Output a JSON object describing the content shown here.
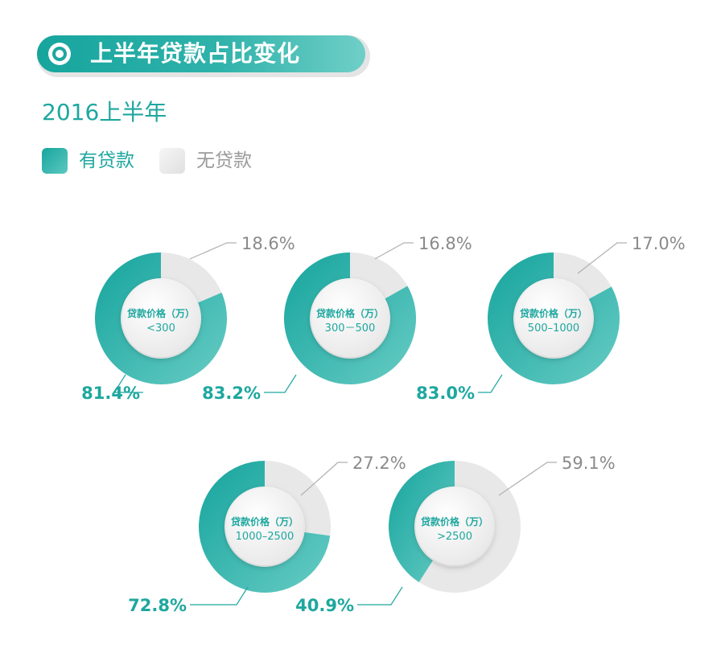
{
  "header": {
    "title": "上半年贷款占比变化",
    "title_icon": "target-icon"
  },
  "subtitle": "2016上半年",
  "legend": {
    "with_loan": {
      "label": "有贷款",
      "color": "#1ea79f"
    },
    "without_loan": {
      "label": "无贷款",
      "color": "#e8e8e8"
    }
  },
  "chart_data": {
    "type": "pie",
    "donut": true,
    "title": "上半年贷款占比变化",
    "subtitle": "2016上半年",
    "series_names": [
      "有贷款",
      "无贷款"
    ],
    "colors": {
      "有贷款": "#1ea79f",
      "无贷款": "#e8e8e8"
    },
    "charts": [
      {
        "center_label_1": "贷款价格（万）",
        "center_label_2": "<300",
        "values": [
          81.4,
          18.6
        ],
        "labels": [
          "81.4%",
          "18.6%"
        ]
      },
      {
        "center_label_1": "贷款价格（万）",
        "center_label_2": "300－500",
        "values": [
          83.2,
          16.8
        ],
        "labels": [
          "83.2%",
          "16.8%"
        ]
      },
      {
        "center_label_1": "贷款价格（万）",
        "center_label_2": "500–1000",
        "values": [
          83.0,
          17.0
        ],
        "labels": [
          "83.0%",
          "17.0%"
        ]
      },
      {
        "center_label_1": "贷款价格（万）",
        "center_label_2": "1000–2500",
        "values": [
          72.8,
          27.2
        ],
        "labels": [
          "72.8%",
          "27.2%"
        ]
      },
      {
        "center_label_1": "贷款价格（万）",
        "center_label_2": ">2500",
        "values": [
          40.9,
          59.1
        ],
        "labels": [
          "40.9%",
          "59.1%"
        ]
      }
    ]
  }
}
